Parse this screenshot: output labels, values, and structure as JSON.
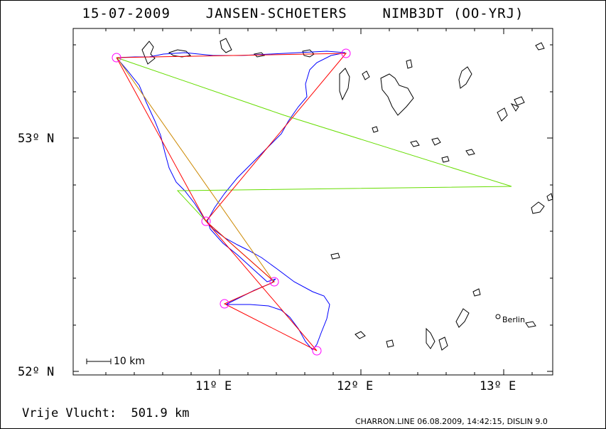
{
  "header": {
    "date": "15-07-2009",
    "pilot": "JANSEN-SCHOETERS",
    "aircraft": "NIMB3DT (OO-YRJ)"
  },
  "axes": {
    "y_ticks": [
      "53º N",
      "52º N"
    ],
    "x_ticks": [
      "11º E",
      "12º E",
      "13º E"
    ]
  },
  "scale_bar_label": "10 km",
  "city_label": "Berlin",
  "distance": {
    "label": "Vrije Vlucht:",
    "value": "501.9 km"
  },
  "footer": "CHARRON.LINE 06.08.2009, 14:42:15, DISLIN 9.0",
  "colors": {
    "track": "#0000ff",
    "task": "#ff0000",
    "free_flight": "#66dd00",
    "turnpoint": "#ff00ff",
    "lakes": "#000000"
  }
}
